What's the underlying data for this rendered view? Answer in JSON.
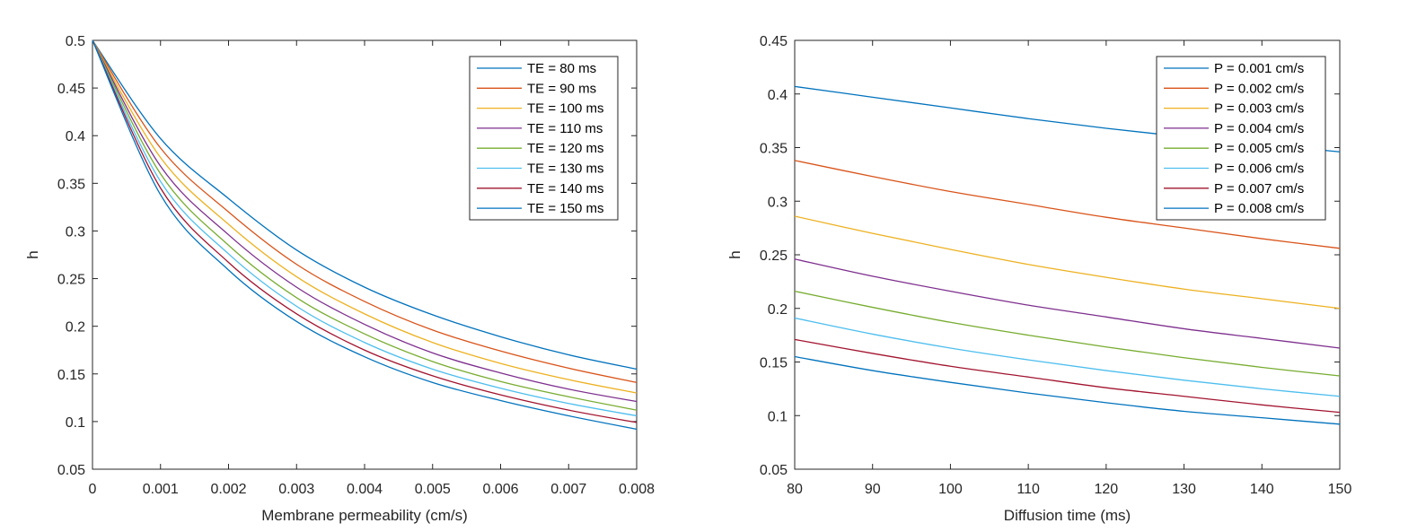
{
  "chart_data": [
    {
      "type": "line",
      "xlabel": "Membrane permeability (cm/s)",
      "ylabel": "h",
      "xlim": [
        0,
        0.008
      ],
      "ylim": [
        0.05,
        0.5
      ],
      "xticks": [
        "0",
        "0.001",
        "0.002",
        "0.003",
        "0.004",
        "0.005",
        "0.006",
        "0.007",
        "0.008"
      ],
      "yticks": [
        "0.05",
        "0.1",
        "0.15",
        "0.2",
        "0.25",
        "0.3",
        "0.35",
        "0.4",
        "0.45",
        "0.5"
      ],
      "legend_position": "top-right",
      "x": [
        0,
        0.001,
        0.002,
        0.003,
        0.004,
        0.005,
        0.006,
        0.007,
        0.008
      ],
      "series": [
        {
          "name": "TE = 80 ms",
          "color": "#0072BD",
          "values": [
            0.5,
            0.397,
            0.334,
            0.28,
            0.241,
            0.212,
            0.189,
            0.17,
            0.155
          ]
        },
        {
          "name": "TE = 90 ms",
          "color": "#D95319",
          "values": [
            0.5,
            0.387,
            0.32,
            0.265,
            0.226,
            0.196,
            0.174,
            0.156,
            0.141
          ]
        },
        {
          "name": "TE = 100 ms",
          "color": "#EDB120",
          "values": [
            0.5,
            0.377,
            0.307,
            0.252,
            0.213,
            0.183,
            0.161,
            0.144,
            0.13
          ]
        },
        {
          "name": "TE = 110 ms",
          "color": "#7E2F8E",
          "values": [
            0.5,
            0.368,
            0.296,
            0.241,
            0.202,
            0.172,
            0.151,
            0.134,
            0.121
          ]
        },
        {
          "name": "TE = 120 ms",
          "color": "#77AC30",
          "values": [
            0.5,
            0.36,
            0.285,
            0.23,
            0.192,
            0.163,
            0.142,
            0.126,
            0.112
          ]
        },
        {
          "name": "TE = 130 ms",
          "color": "#4DBEEE",
          "values": [
            0.5,
            0.352,
            0.276,
            0.221,
            0.183,
            0.155,
            0.135,
            0.119,
            0.106
          ]
        },
        {
          "name": "TE = 140 ms",
          "color": "#A2142F",
          "values": [
            0.5,
            0.345,
            0.267,
            0.213,
            0.175,
            0.148,
            0.128,
            0.112,
            0.099
          ]
        },
        {
          "name": "TE = 150 ms",
          "color": "#0072BD",
          "values": [
            0.5,
            0.338,
            0.259,
            0.205,
            0.168,
            0.141,
            0.122,
            0.106,
            0.092
          ]
        }
      ]
    },
    {
      "type": "line",
      "xlabel": "Diffusion time (ms)",
      "ylabel": "h",
      "xlim": [
        80,
        150
      ],
      "ylim": [
        0.05,
        0.45
      ],
      "xticks": [
        "80",
        "90",
        "100",
        "110",
        "120",
        "130",
        "140",
        "150"
      ],
      "yticks": [
        "0.05",
        "0.1",
        "0.15",
        "0.2",
        "0.25",
        "0.3",
        "0.35",
        "0.4",
        "0.45"
      ],
      "legend_position": "top-right",
      "x": [
        80,
        90,
        100,
        110,
        120,
        130,
        140,
        150
      ],
      "series": [
        {
          "name": "P = 0.001 cm/s",
          "color": "#0072BD",
          "values": [
            0.407,
            0.397,
            0.387,
            0.377,
            0.368,
            0.36,
            0.353,
            0.346
          ]
        },
        {
          "name": "P = 0.002 cm/s",
          "color": "#D95319",
          "values": [
            0.338,
            0.323,
            0.309,
            0.297,
            0.285,
            0.275,
            0.265,
            0.256
          ]
        },
        {
          "name": "P = 0.003 cm/s",
          "color": "#EDB120",
          "values": [
            0.286,
            0.27,
            0.255,
            0.241,
            0.229,
            0.218,
            0.209,
            0.2
          ]
        },
        {
          "name": "P = 0.004 cm/s",
          "color": "#7E2F8E",
          "values": [
            0.246,
            0.23,
            0.216,
            0.203,
            0.192,
            0.181,
            0.172,
            0.163
          ]
        },
        {
          "name": "P = 0.005 cm/s",
          "color": "#77AC30",
          "values": [
            0.216,
            0.201,
            0.187,
            0.175,
            0.164,
            0.154,
            0.145,
            0.137
          ]
        },
        {
          "name": "P = 0.006 cm/s",
          "color": "#4DBEEE",
          "values": [
            0.191,
            0.176,
            0.163,
            0.152,
            0.142,
            0.133,
            0.125,
            0.118
          ]
        },
        {
          "name": "P = 0.007 cm/s",
          "color": "#A2142F",
          "values": [
            0.171,
            0.158,
            0.146,
            0.136,
            0.126,
            0.118,
            0.11,
            0.103
          ]
        },
        {
          "name": "P = 0.008 cm/s",
          "color": "#0072BD",
          "values": [
            0.155,
            0.142,
            0.131,
            0.121,
            0.112,
            0.104,
            0.098,
            0.092
          ]
        }
      ]
    }
  ]
}
